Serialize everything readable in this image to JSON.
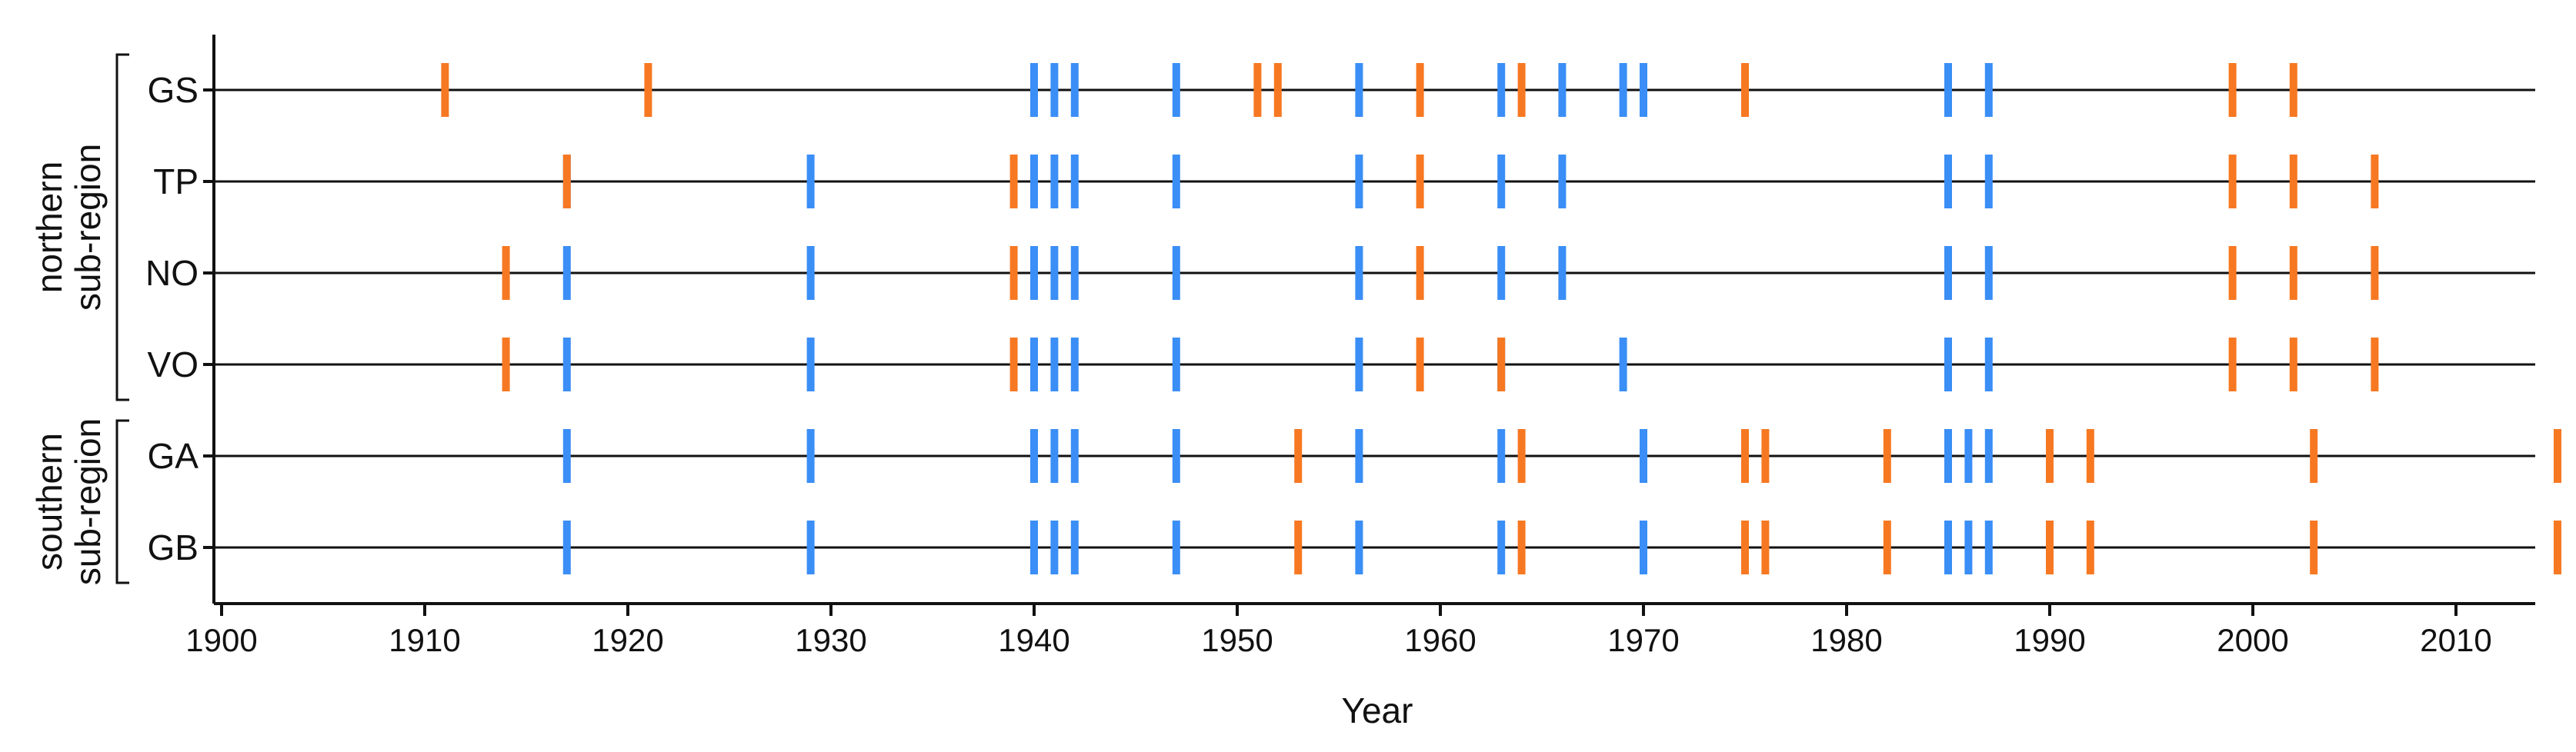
{
  "chart_data": {
    "type": "scatter",
    "title": "",
    "xlabel": "Year",
    "ylabel": "",
    "xlim": [
      1900,
      2016
    ],
    "xticks": [
      1900,
      1910,
      1920,
      1930,
      1940,
      1950,
      1960,
      1970,
      1980,
      1990,
      2000,
      2010
    ],
    "grid": false,
    "legend": "none",
    "colors": {
      "blue": "#3a8ef6",
      "orange": "#f77822",
      "line": "#111111"
    },
    "groups": [
      {
        "label_line1": "northern",
        "label_line2": "sub-region",
        "sites": [
          "GS",
          "TP",
          "NO",
          "VO"
        ]
      },
      {
        "label_line1": "southern",
        "label_line2": "sub-region",
        "sites": [
          "GA",
          "GB"
        ]
      }
    ],
    "rows": [
      {
        "site": "GS",
        "blue": [
          1940,
          1941,
          1942,
          1947,
          1956,
          1963,
          1966,
          1969,
          1970,
          1985,
          1987
        ],
        "orange": [
          1911,
          1921,
          1951,
          1952,
          1959,
          1964,
          1975,
          1999,
          2002
        ]
      },
      {
        "site": "TP",
        "blue": [
          1917,
          1929,
          1940,
          1941,
          1942,
          1947,
          1956,
          1963,
          1966,
          1985,
          1987
        ],
        "orange": [
          1917,
          1939,
          1959,
          1999,
          2002,
          2006
        ]
      },
      {
        "site": "NO",
        "blue": [
          1917,
          1929,
          1940,
          1941,
          1942,
          1947,
          1956,
          1963,
          1966,
          1985,
          1987
        ],
        "orange": [
          1914,
          1939,
          1959,
          1999,
          2002,
          2006
        ]
      },
      {
        "site": "VO",
        "blue": [
          1917,
          1929,
          1940,
          1941,
          1942,
          1947,
          1956,
          1963,
          1969,
          1985,
          1987
        ],
        "orange": [
          1914,
          1939,
          1959,
          1963,
          1999,
          2002,
          2006
        ]
      },
      {
        "site": "GA",
        "blue": [
          1917,
          1929,
          1940,
          1941,
          1942,
          1947,
          1956,
          1963,
          1970,
          1985,
          1986,
          1987
        ],
        "orange": [
          1953,
          1964,
          1975,
          1976,
          1982,
          1990,
          1992,
          2003,
          2015
        ]
      },
      {
        "site": "GB",
        "blue": [
          1917,
          1929,
          1940,
          1941,
          1942,
          1947,
          1956,
          1963,
          1970,
          1985,
          1986,
          1987
        ],
        "orange": [
          1953,
          1964,
          1975,
          1976,
          1982,
          1990,
          1992,
          2003,
          2015
        ]
      }
    ]
  }
}
